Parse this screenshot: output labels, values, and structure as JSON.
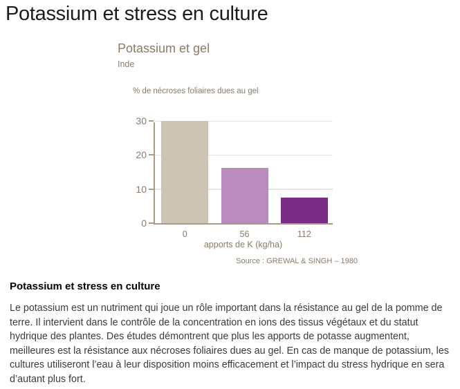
{
  "page": {
    "title": "Potassium et stress en culture"
  },
  "chart_data": {
    "type": "bar",
    "title": "Potassium et gel",
    "subtitle": "Inde",
    "categories": [
      "0",
      "56",
      "112"
    ],
    "values": [
      30,
      16.3,
      7.5
    ],
    "xlabel": "apports de K (kg/ha)",
    "ylabel": "% de nécroses foliaires dues au gel",
    "ylim": [
      0,
      30
    ],
    "yticks": [
      0,
      10,
      20,
      30
    ],
    "grid": true,
    "legend": false,
    "bar_colors": [
      "#cdc4b6",
      "#b98cbd",
      "#7b2c85"
    ],
    "source": "Source : GREWAL & SINGH – 1980"
  },
  "article": {
    "heading": "Potassium et stress en culture",
    "body": "Le potassium est un nutriment qui joue un rôle important dans la résistance au gel de la pomme de terre. Il intervient dans le contrôle de la concentration en ions des tissus végétaux et du statut hydrique des plantes. Des études démontrent que plus les apports de potasse augmentent, meilleures est la résistance aux nécroses foliaires dues au gel. En cas de manque de potassium, les cultures utiliseront l’eau à leur disposition moins efficacement et l’impact du stress hydrique en sera d’autant plus fort."
  },
  "colors": {
    "accent_taupe": "#8a7b6a",
    "axis": "#a89b8c",
    "gridline": "#e8e5e1",
    "title_text": "#1c1c1a",
    "body_text": "#3b3b3a"
  }
}
